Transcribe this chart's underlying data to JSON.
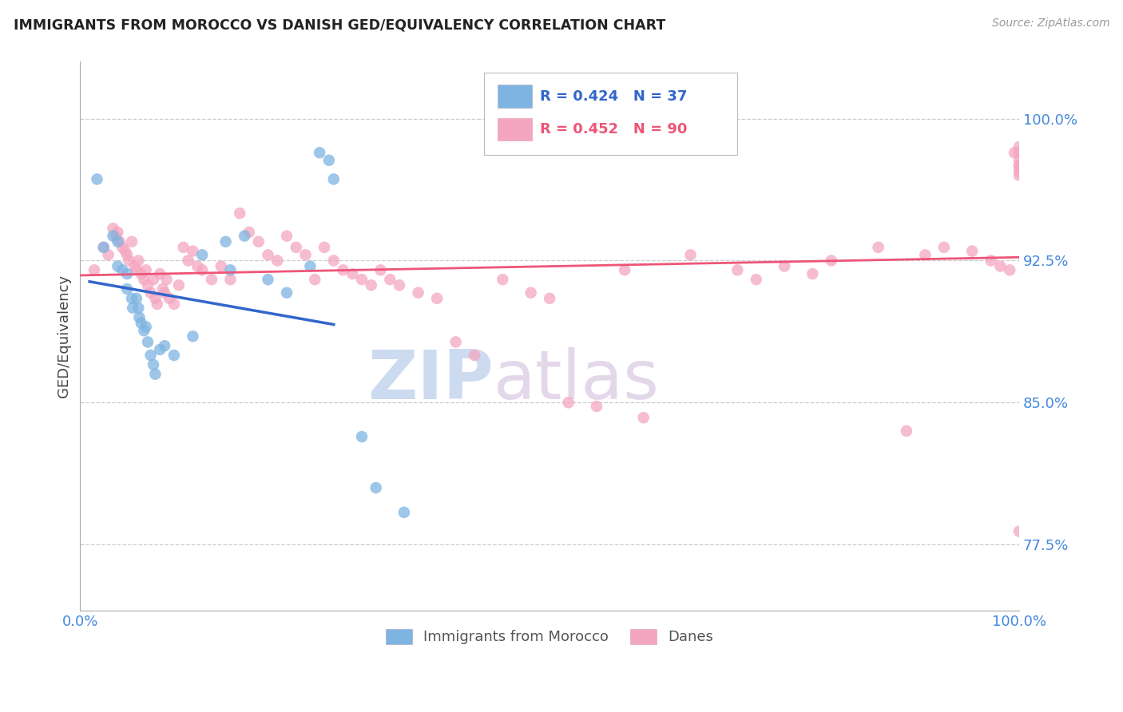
{
  "title": "IMMIGRANTS FROM MOROCCO VS DANISH GED/EQUIVALENCY CORRELATION CHART",
  "source": "Source: ZipAtlas.com",
  "ylabel": "GED/Equivalency",
  "yticks": [
    77.5,
    85.0,
    92.5,
    100.0
  ],
  "ytick_labels": [
    "77.5%",
    "85.0%",
    "92.5%",
    "100.0%"
  ],
  "xlim": [
    0.0,
    1.0
  ],
  "ylim": [
    74.0,
    103.0
  ],
  "legend_label_blue": "Immigrants from Morocco",
  "legend_label_pink": "Danes",
  "color_blue": "#7EB4E2",
  "color_pink": "#F4A6C0",
  "line_color_blue": "#3366CC",
  "line_color_pink": "#EE5577",
  "watermark_zip": "ZIP",
  "watermark_atlas": "atlas",
  "blue_r": "R = 0.424",
  "blue_n": "N = 37",
  "pink_r": "R = 0.452",
  "pink_n": "N = 90",
  "blue_x": [
    0.018,
    0.025,
    0.035,
    0.04,
    0.04,
    0.045,
    0.05,
    0.05,
    0.055,
    0.056,
    0.06,
    0.062,
    0.063,
    0.065,
    0.068,
    0.07,
    0.072,
    0.075,
    0.078,
    0.08,
    0.085,
    0.09,
    0.1,
    0.12,
    0.13,
    0.155,
    0.16,
    0.175,
    0.2,
    0.22,
    0.245,
    0.255,
    0.265,
    0.27,
    0.3,
    0.315,
    0.345
  ],
  "blue_y": [
    96.8,
    93.2,
    93.8,
    93.5,
    92.2,
    92.0,
    91.8,
    91.0,
    90.5,
    90.0,
    90.5,
    90.0,
    89.5,
    89.2,
    88.8,
    89.0,
    88.2,
    87.5,
    87.0,
    86.5,
    87.8,
    88.0,
    87.5,
    88.5,
    92.8,
    93.5,
    92.0,
    93.8,
    91.5,
    90.8,
    92.2,
    98.2,
    97.8,
    96.8,
    83.2,
    80.5,
    79.2
  ],
  "pink_x": [
    0.015,
    0.025,
    0.03,
    0.035,
    0.038,
    0.04,
    0.042,
    0.045,
    0.048,
    0.05,
    0.052,
    0.055,
    0.058,
    0.06,
    0.062,
    0.065,
    0.068,
    0.07,
    0.072,
    0.075,
    0.078,
    0.08,
    0.082,
    0.085,
    0.088,
    0.09,
    0.092,
    0.095,
    0.1,
    0.105,
    0.11,
    0.115,
    0.12,
    0.125,
    0.13,
    0.14,
    0.15,
    0.16,
    0.17,
    0.18,
    0.19,
    0.2,
    0.21,
    0.22,
    0.23,
    0.24,
    0.25,
    0.26,
    0.27,
    0.28,
    0.29,
    0.3,
    0.31,
    0.32,
    0.33,
    0.34,
    0.36,
    0.38,
    0.4,
    0.42,
    0.45,
    0.48,
    0.5,
    0.52,
    0.55,
    0.58,
    0.6,
    0.65,
    0.7,
    0.72,
    0.75,
    0.78,
    0.8,
    0.85,
    0.88,
    0.9,
    0.92,
    0.95,
    0.97,
    0.98,
    0.99,
    0.995,
    1.0,
    1.0,
    1.0,
    1.0,
    1.0,
    1.0,
    1.0,
    1.0
  ],
  "pink_y": [
    92.0,
    93.2,
    92.8,
    94.2,
    93.8,
    94.0,
    93.5,
    93.2,
    93.0,
    92.8,
    92.5,
    93.5,
    92.2,
    92.0,
    92.5,
    91.8,
    91.5,
    92.0,
    91.2,
    90.8,
    91.5,
    90.5,
    90.2,
    91.8,
    91.0,
    90.8,
    91.5,
    90.5,
    90.2,
    91.2,
    93.2,
    92.5,
    93.0,
    92.2,
    92.0,
    91.5,
    92.2,
    91.5,
    95.0,
    94.0,
    93.5,
    92.8,
    92.5,
    93.8,
    93.2,
    92.8,
    91.5,
    93.2,
    92.5,
    92.0,
    91.8,
    91.5,
    91.2,
    92.0,
    91.5,
    91.2,
    90.8,
    90.5,
    88.2,
    87.5,
    91.5,
    90.8,
    90.5,
    85.0,
    84.8,
    92.0,
    84.2,
    92.8,
    92.0,
    91.5,
    92.2,
    91.8,
    92.5,
    93.2,
    83.5,
    92.8,
    93.2,
    93.0,
    92.5,
    92.2,
    92.0,
    98.2,
    98.5,
    98.2,
    97.8,
    97.5,
    97.2,
    97.0,
    97.5,
    78.2
  ]
}
